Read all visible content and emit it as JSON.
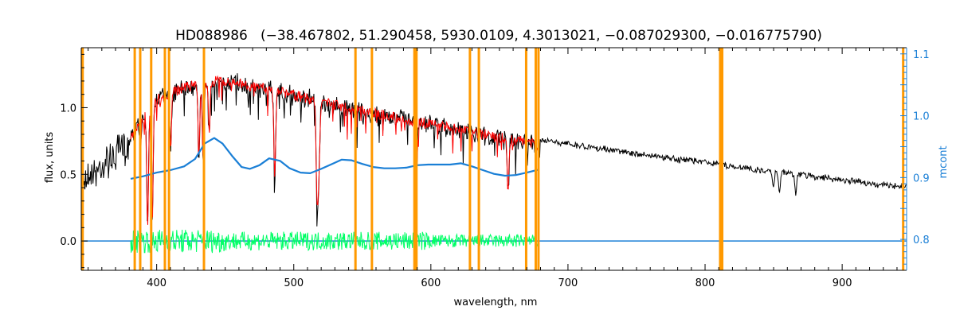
{
  "chart_data": {
    "type": "line",
    "title": "HD088986   (−38.467802, 51.290458, 5930.0109, 4.3013021, −0.087029300, −0.016775790)",
    "xlabel": "wavelength, nm",
    "ylabel": "flux, units",
    "y2label": "mcont",
    "xlim": [
      345,
      947
    ],
    "ylim": [
      -0.22,
      1.45
    ],
    "y2lim": [
      0.75,
      1.11
    ],
    "x_ticks": [
      400,
      500,
      600,
      700,
      800,
      900
    ],
    "y_ticks": [
      0.0,
      0.5,
      1.0
    ],
    "y_tick_labels": [
      "0.0",
      "0.5",
      "1.0"
    ],
    "y2_ticks": [
      0.8,
      0.9,
      1.0,
      1.1
    ],
    "y2_tick_labels": [
      "0.8",
      "0.9",
      "1.0",
      "1.1"
    ],
    "grid": false,
    "colors": {
      "observed": "#000000",
      "model": "#ff0000",
      "residual": "#00ff66",
      "mcont": "#1a7fd6",
      "zero_line": "#1a7fd6",
      "masks": "#ff9900",
      "right_axis": "#1a7fd6"
    },
    "mask_lines_nm": [
      346,
      384,
      388,
      396,
      406,
      409,
      434.5,
      545,
      557,
      588,
      589.5,
      628.5,
      635,
      669.5,
      676.5,
      678.5,
      811,
      812.5,
      944.5
    ],
    "observed_range_nm": [
      345,
      947
    ],
    "model_range_nm": [
      381,
      679
    ],
    "continuum_envelope": {
      "x": [
        345,
        360,
        380,
        400,
        420,
        440,
        460,
        480,
        500,
        520,
        540,
        560,
        580,
        600,
        620,
        640,
        660,
        680,
        700,
        720,
        740,
        760,
        780,
        800,
        820,
        840,
        860,
        880,
        900,
        920,
        940,
        947
      ],
      "y": [
        0.57,
        0.68,
        0.82,
        1.12,
        1.21,
        1.26,
        1.24,
        1.2,
        1.15,
        1.1,
        1.05,
        1.01,
        0.97,
        0.93,
        0.89,
        0.85,
        0.81,
        0.78,
        0.75,
        0.72,
        0.69,
        0.66,
        0.63,
        0.61,
        0.58,
        0.55,
        0.53,
        0.5,
        0.48,
        0.45,
        0.43,
        0.43
      ]
    },
    "absorption_lines": [
      {
        "x": 393.4,
        "depth": 0.85
      },
      {
        "x": 396.8,
        "depth": 0.8
      },
      {
        "x": 410.2,
        "depth": 0.35
      },
      {
        "x": 430.8,
        "depth": 0.45
      },
      {
        "x": 434.0,
        "depth": 0.5
      },
      {
        "x": 438.3,
        "depth": 0.3
      },
      {
        "x": 486.1,
        "depth": 0.55
      },
      {
        "x": 516.7,
        "depth": 0.35
      },
      {
        "x": 517.3,
        "depth": 0.4
      },
      {
        "x": 518.4,
        "depth": 0.42
      },
      {
        "x": 589.0,
        "depth": 0.3
      },
      {
        "x": 589.6,
        "depth": 0.28
      },
      {
        "x": 656.3,
        "depth": 0.5
      },
      {
        "x": 849.8,
        "depth": 0.25
      },
      {
        "x": 854.2,
        "depth": 0.3
      },
      {
        "x": 866.2,
        "depth": 0.28
      }
    ],
    "series": [
      {
        "role": "mcont",
        "axis": "right",
        "x": [
          381,
          390,
          400,
          410,
          420,
          428,
          435,
          442,
          448,
          455,
          462,
          468,
          475,
          482,
          490,
          497,
          505,
          512,
          520,
          528,
          535,
          542,
          550,
          558,
          566,
          574,
          582,
          590,
          598,
          606,
          614,
          622,
          630,
          638,
          646,
          654,
          662,
          670,
          679
        ],
        "y": [
          0.898,
          0.902,
          0.908,
          0.912,
          0.918,
          0.93,
          0.955,
          0.964,
          0.955,
          0.935,
          0.917,
          0.914,
          0.92,
          0.931,
          0.927,
          0.915,
          0.908,
          0.907,
          0.914,
          0.922,
          0.929,
          0.928,
          0.922,
          0.917,
          0.915,
          0.915,
          0.916,
          0.92,
          0.921,
          0.921,
          0.921,
          0.923,
          0.918,
          0.912,
          0.906,
          0.903,
          0.904,
          0.908,
          0.913
        ]
      }
    ]
  }
}
